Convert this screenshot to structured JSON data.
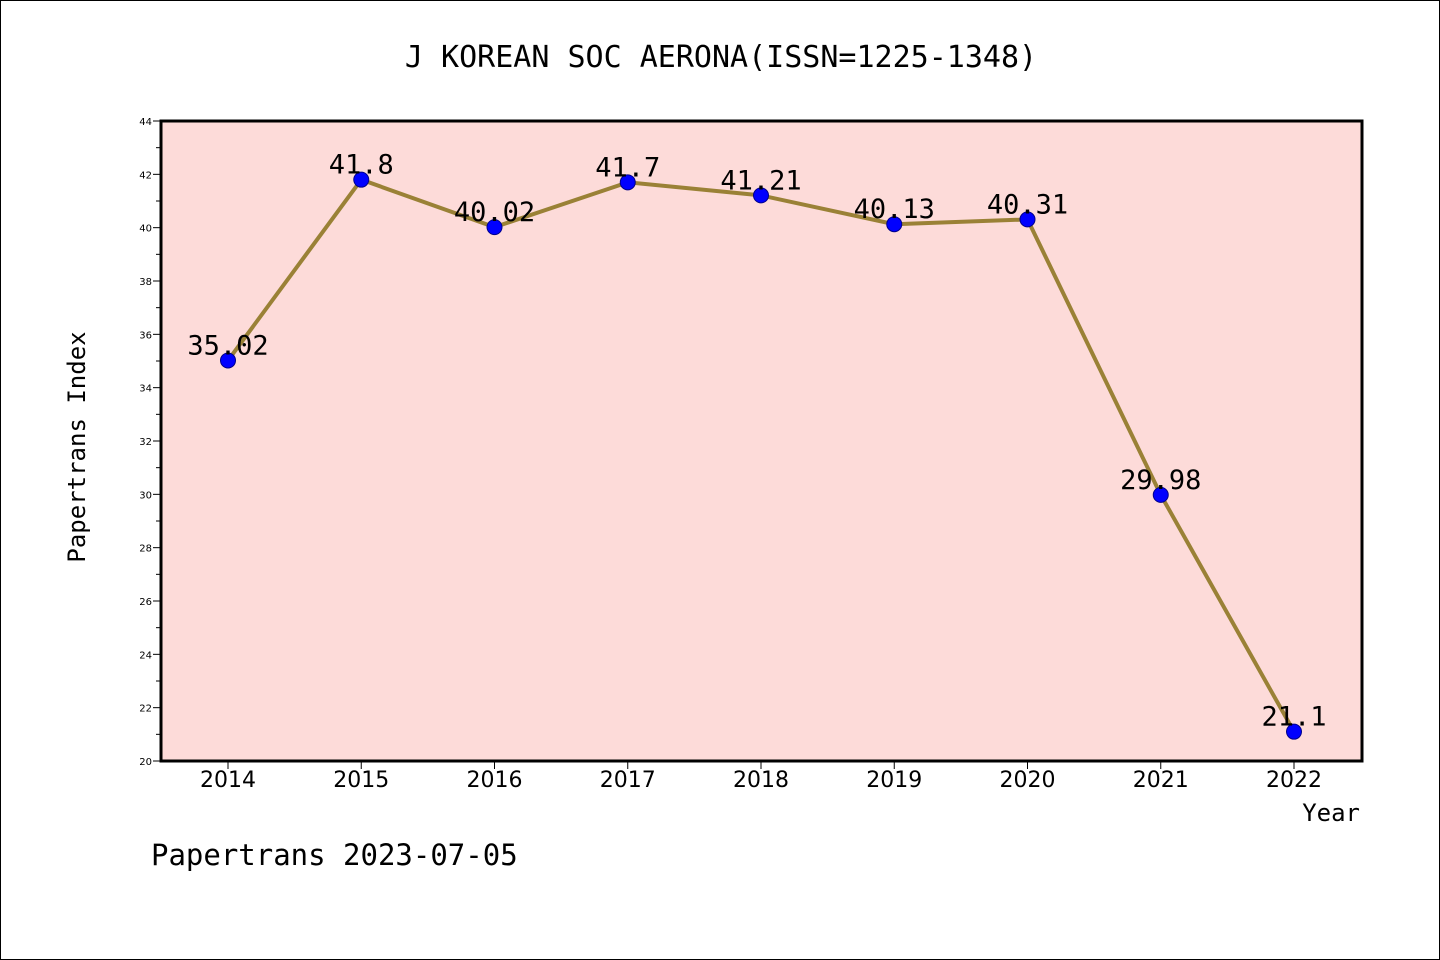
{
  "chart_data": {
    "type": "line",
    "title": "J KOREAN SOC AERONA(ISSN=1225-1348)",
    "xlabel": "Year",
    "ylabel": "Papertrans Index",
    "categories": [
      "2014",
      "2015",
      "2016",
      "2017",
      "2018",
      "2019",
      "2020",
      "2021",
      "2022"
    ],
    "series": [
      {
        "values": [
          35.02,
          41.8,
          40.02,
          41.7,
          41.21,
          40.13,
          40.31,
          29.98,
          21.1
        ]
      }
    ],
    "data_labels": [
      "35.02",
      "41.8",
      "40.02",
      "41.7",
      "41.21",
      "40.13",
      "40.31",
      "29.98",
      "21.1"
    ],
    "ylim": [
      20,
      44
    ],
    "yticks": [
      20,
      22,
      24,
      26,
      28,
      30,
      32,
      34,
      36,
      38,
      40,
      42,
      44
    ],
    "grid": false,
    "legend": "none",
    "colors": {
      "plot_background": "#fddbd9",
      "line": "#9a8136",
      "marker": "#0000ff"
    }
  },
  "footer": "Papertrans 2023-07-05"
}
